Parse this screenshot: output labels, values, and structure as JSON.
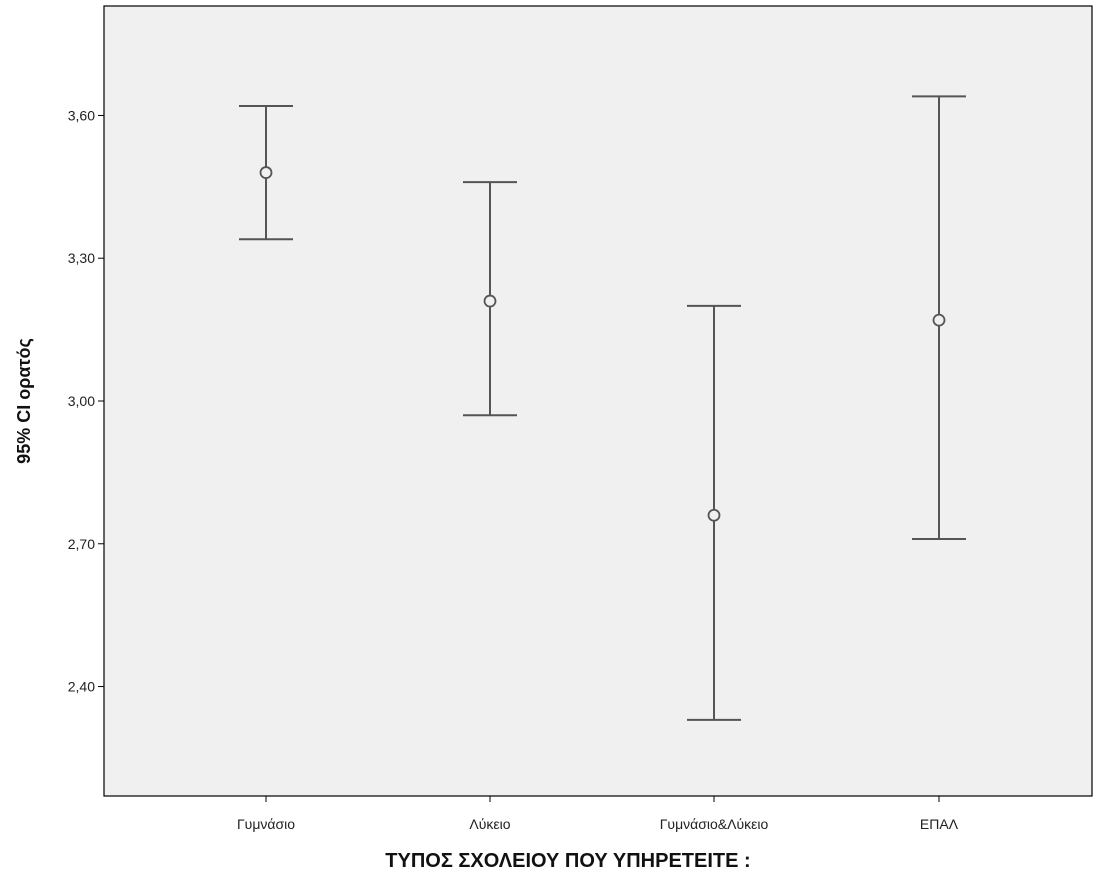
{
  "chart_data": {
    "type": "errorbar",
    "xlabel": "ΤΥΠΟΣ  ΣΧΟΛΕΙΟΥ  ΠΟΥ ΥΠΗΡΕΤΕΙΤΕ :",
    "ylabel": "95% CI ορατός",
    "ylim": [
      2.17,
      3.83
    ],
    "yticks": [
      2.4,
      2.7,
      3.0,
      3.3,
      3.6
    ],
    "ytick_labels": [
      "2,40",
      "2,70",
      "3,00",
      "3,30",
      "3,60"
    ],
    "categories": [
      "Γυμνάσιο",
      "Λύκειο",
      "Γυμνάσιο&Λύκειο",
      "ΕΠΑΛ"
    ],
    "means": [
      3.48,
      3.21,
      2.76,
      3.17
    ],
    "lower": [
      3.34,
      2.97,
      2.33,
      2.71
    ],
    "upper": [
      3.62,
      3.46,
      3.2,
      3.64
    ],
    "grid": false,
    "background_color": "#f0f0f0",
    "line_color": "#555555"
  }
}
